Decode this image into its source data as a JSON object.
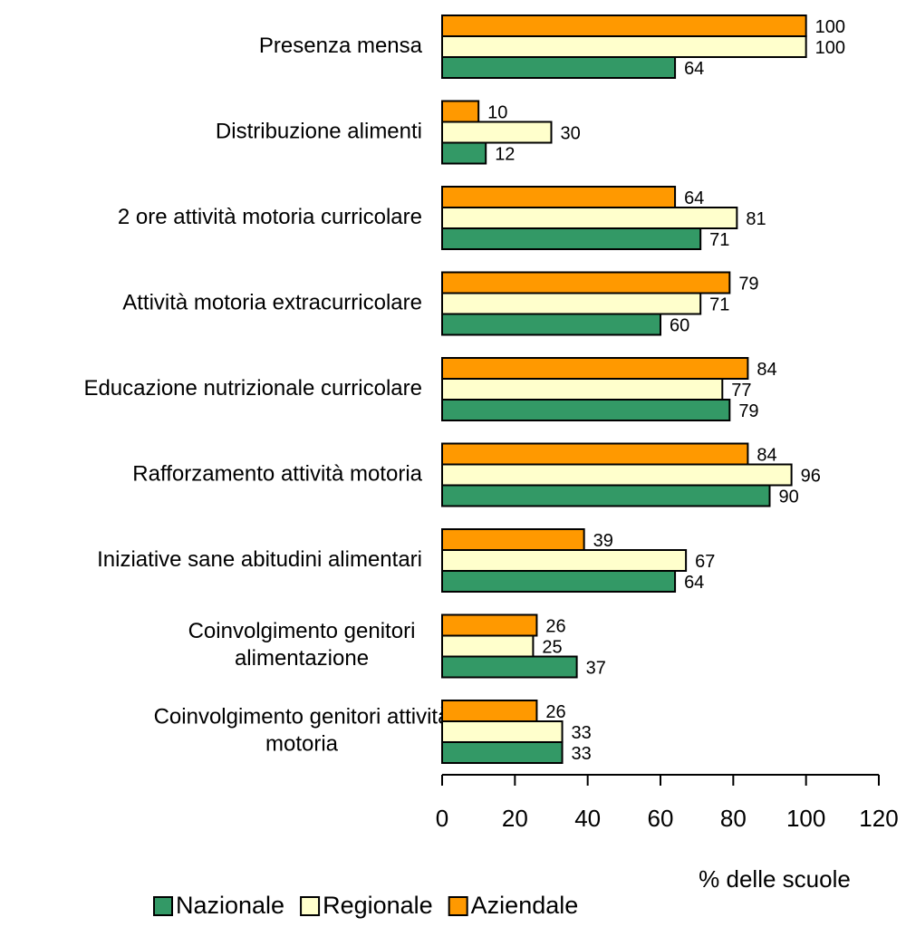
{
  "chart_data": {
    "type": "hbar",
    "categories": [
      "Presenza mensa",
      "Distribuzione alimenti",
      "2 ore attività motoria curricolare",
      "Attività motoria extracurricolare",
      "Educazione nutrizionale curricolare",
      "Rafforzamento attività motoria",
      "Iniziative sane abitudini alimentari",
      "Coinvolgimento genitori alimentazione",
      "Coinvolgimento genitori attività motoria"
    ],
    "series": [
      {
        "name": "Nazionale",
        "color": "#339966",
        "values": [
          64,
          12,
          71,
          60,
          79,
          90,
          64,
          37,
          33
        ]
      },
      {
        "name": "Regionale",
        "color": "#ffffcc",
        "values": [
          100,
          30,
          81,
          71,
          77,
          96,
          67,
          25,
          33
        ]
      },
      {
        "name": "Aziendale",
        "color": "#ff9900",
        "values": [
          100,
          10,
          64,
          79,
          84,
          84,
          39,
          26,
          26
        ]
      }
    ],
    "xlabel": "% delle scuole",
    "xlim": [
      0,
      120
    ],
    "xticks": [
      0,
      20,
      40,
      60,
      80,
      100,
      120
    ],
    "legend": "bottom"
  }
}
